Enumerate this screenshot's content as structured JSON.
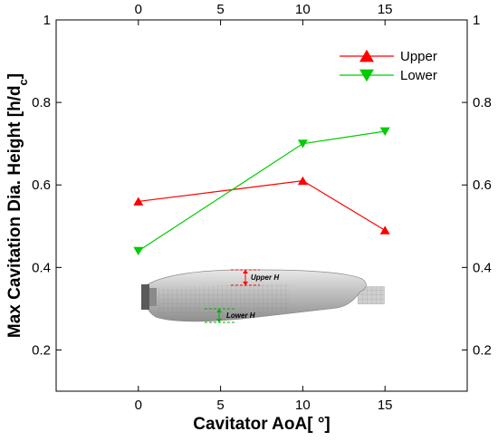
{
  "chart_data": {
    "type": "line",
    "xlabel": "Cavitator AoA[ °]",
    "ylabel": "Max Cavitation Dia. Height [h/d",
    "ylabel_subscript": "c",
    "ylabel_end": "]",
    "xlim": [
      -5,
      20
    ],
    "ylim": [
      0.1,
      1.0
    ],
    "x_ticks": [
      0,
      5,
      10,
      15
    ],
    "x_tick_labels": [
      "0",
      "5",
      "10",
      "15"
    ],
    "y_ticks": [
      0.2,
      0.4,
      0.6,
      0.8,
      1.0
    ],
    "y_tick_labels": [
      "0.2",
      "0.4",
      "0.6",
      "0.8",
      "1"
    ],
    "grid": false,
    "legend_placement": "top-right",
    "series": [
      {
        "name": "Upper",
        "color": "#ff0000",
        "marker": "triangle-up",
        "x": [
          0,
          10,
          15
        ],
        "y": [
          0.56,
          0.61,
          0.49
        ]
      },
      {
        "name": "Lower",
        "color": "#00cc00",
        "marker": "triangle-down",
        "x": [
          0,
          10,
          15
        ],
        "y": [
          0.44,
          0.7,
          0.73
        ]
      }
    ],
    "inset": {
      "upper_label": "Upper H",
      "lower_label": "Lower H"
    }
  }
}
